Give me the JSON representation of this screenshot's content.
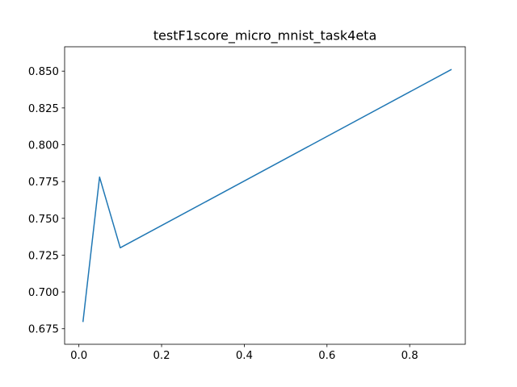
{
  "chart_data": {
    "type": "line",
    "title": "testF1score_micro_mnist_task4eta",
    "xlabel": "",
    "ylabel": "",
    "xlim": [
      -0.0345,
      0.9345
    ],
    "ylim": [
      0.66445,
      0.86655
    ],
    "grid": false,
    "x_ticks": [
      0.0,
      0.2,
      0.4,
      0.6,
      0.8
    ],
    "x_tick_labels": [
      "0.0",
      "0.2",
      "0.4",
      "0.6",
      "0.8"
    ],
    "y_ticks": [
      0.675,
      0.7,
      0.725,
      0.75,
      0.775,
      0.8,
      0.825,
      0.85
    ],
    "y_tick_labels": [
      "0.675",
      "0.700",
      "0.725",
      "0.750",
      "0.775",
      "0.800",
      "0.825",
      "0.850"
    ],
    "series": [
      {
        "color": "#1f77b4",
        "x": [
          0.01,
          0.05,
          0.1,
          0.9
        ],
        "y": [
          0.68,
          0.778,
          0.73,
          0.851
        ]
      }
    ]
  }
}
